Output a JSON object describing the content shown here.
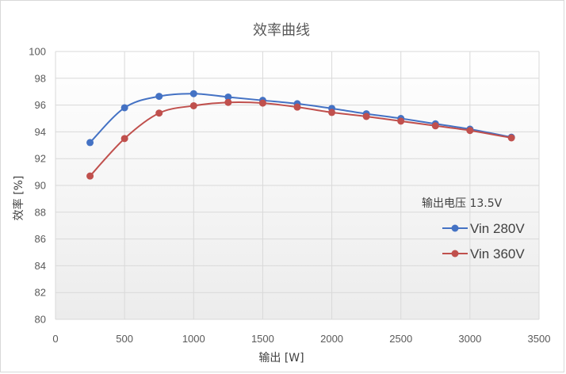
{
  "chart_data": {
    "type": "line",
    "title": "效率曲线",
    "xlabel": "输出 [W]",
    "ylabel": "效率 [%]",
    "xlim": [
      0,
      3500
    ],
    "ylim": [
      80,
      100
    ],
    "x_ticks": [
      0,
      500,
      1000,
      1500,
      2000,
      2500,
      3000,
      3500
    ],
    "y_ticks": [
      80,
      82,
      84,
      86,
      88,
      90,
      92,
      94,
      96,
      98,
      100
    ],
    "grid": true,
    "legend_position": "right",
    "annotation": "输出电压  13.5V",
    "series": [
      {
        "name": "Vin 280V",
        "color": "#4472c4",
        "x": [
          250,
          500,
          750,
          1000,
          1250,
          1500,
          1750,
          2000,
          2250,
          2500,
          2750,
          3000,
          3300
        ],
        "y": [
          93.2,
          95.8,
          96.65,
          96.85,
          96.6,
          96.35,
          96.1,
          95.75,
          95.35,
          95.0,
          94.6,
          94.2,
          93.6
        ]
      },
      {
        "name": "Vin 360V",
        "color": "#c0504d",
        "x": [
          250,
          500,
          750,
          1000,
          1250,
          1500,
          1750,
          2000,
          2250,
          2500,
          2750,
          3000,
          3300
        ],
        "y": [
          90.7,
          93.5,
          95.4,
          95.95,
          96.2,
          96.15,
          95.85,
          95.45,
          95.15,
          94.8,
          94.45,
          94.1,
          93.55
        ]
      }
    ]
  }
}
